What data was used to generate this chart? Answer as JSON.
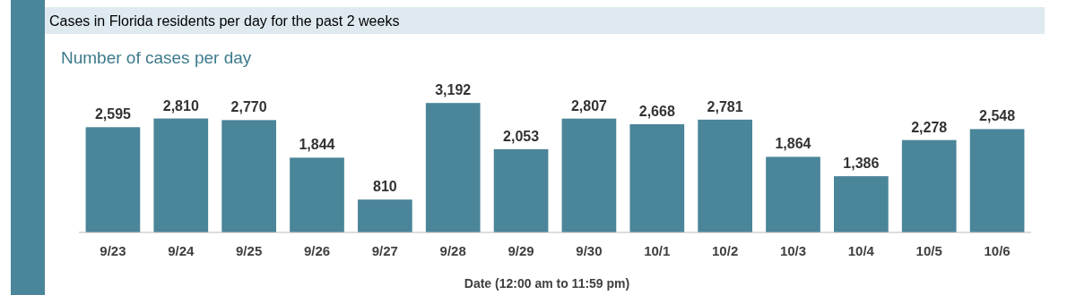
{
  "chart_data": {
    "type": "bar",
    "title": "Cases in Florida residents per day for the past 2 weeks",
    "ylabel": "Number of cases per day",
    "xlabel": "Date (12:00 am to 11:59 pm)",
    "categories": [
      "9/23",
      "9/24",
      "9/25",
      "9/26",
      "9/27",
      "9/28",
      "9/29",
      "9/30",
      "10/1",
      "10/2",
      "10/3",
      "10/4",
      "10/5",
      "10/6"
    ],
    "values": [
      2595,
      2810,
      2770,
      1844,
      810,
      3192,
      2053,
      2807,
      2668,
      2781,
      1864,
      1386,
      2278,
      2548
    ],
    "value_labels": [
      "2,595",
      "2,810",
      "2,770",
      "1,844",
      "810",
      "3,192",
      "2,053",
      "2,807",
      "2,668",
      "2,781",
      "1,864",
      "1,386",
      "2,278",
      "2,548"
    ],
    "color": "#4a8599"
  }
}
